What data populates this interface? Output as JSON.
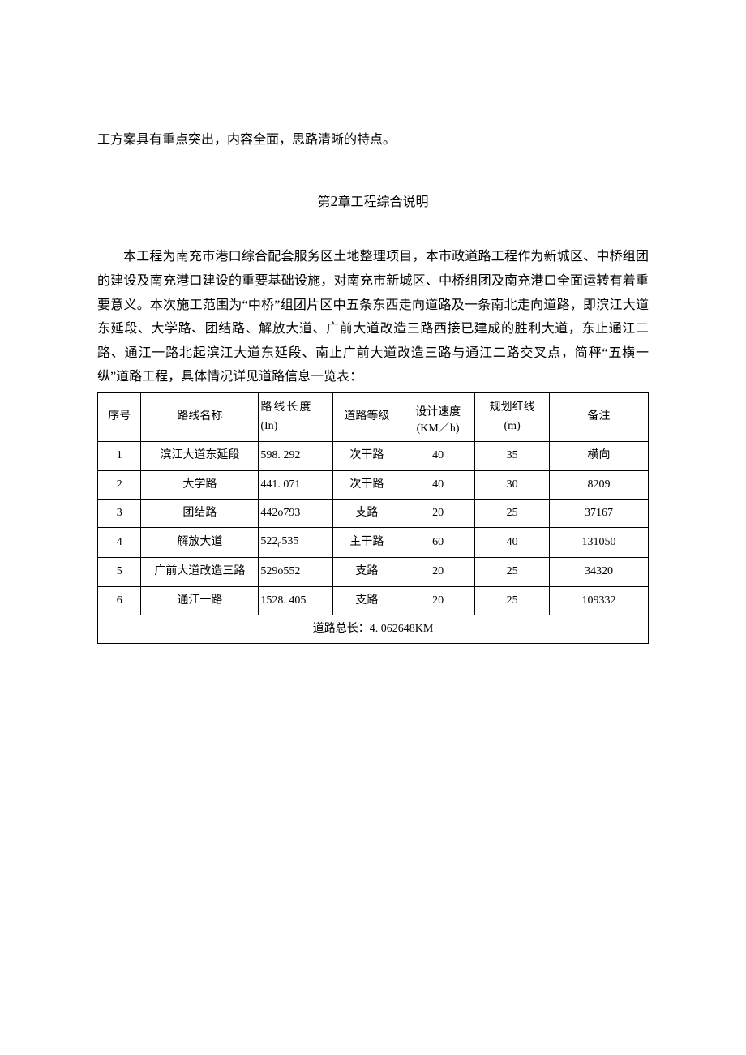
{
  "page": {
    "bg": "#ffffff",
    "text_color": "#000000",
    "font_family": "SimSun",
    "base_fontsize": 16
  },
  "intro": "工方案具有重点突出，内容全面，思路清晰的特点。",
  "chapter": {
    "prefix": "第",
    "number": "2",
    "suffix": "章工程综合说明"
  },
  "paragraph": "本工程为南充市港口综合配套服务区土地整理项目，本市政道路工程作为新城区、中桥组团的建设及南充港口建设的重要基础设施，对南充市新城区、中桥组团及南充港口全面运转有着重要意义。本次施工范围为“中桥”组团片区中五条东西走向道路及一条南北走向道路，即滨江大道东延段、大学路、团结路、解放大道、广前大道改造三路西接已建成的胜利大道，东止通江二路、通江一路北起滨江大道东延段、南止广前大道改造三路与通江二路交叉点，简秤“五横一纵”道路工程，具体情况详见道路信息一览表：",
  "table": {
    "border_color": "#000000",
    "header_fontsize": 14,
    "cell_fontsize": 14,
    "columns": {
      "seq": {
        "label": "序号",
        "width_pct": 7
      },
      "name": {
        "label": "路线名称",
        "width_pct": 19
      },
      "len": {
        "label_l1": "路线长度",
        "label_l2": "(In)",
        "width_pct": 12
      },
      "grade": {
        "label": "道路等级",
        "width_pct": 11
      },
      "speed": {
        "label_l1": "设计速度",
        "label_l2": "(KM／h)",
        "width_pct": 12
      },
      "red": {
        "label_l1": "规划红线",
        "label_l2": "(m)",
        "width_pct": 12
      },
      "note": {
        "label": "备注",
        "width_pct": 16
      }
    },
    "rows": [
      {
        "seq": "1",
        "name": "滨江大道东延段",
        "len": "598. 292",
        "grade": "次干路",
        "speed": "40",
        "red": "35",
        "note": "横向"
      },
      {
        "seq": "2",
        "name": "大学路",
        "len": "441. 071",
        "grade": "次干路",
        "speed": "40",
        "red": "30",
        "note": "8209"
      },
      {
        "seq": "3",
        "name": "团结路",
        "len": "442o793",
        "grade": "支路",
        "speed": "20",
        "red": "25",
        "note": "37167"
      },
      {
        "seq": "4",
        "name": "解放大道",
        "len_pre": "522",
        "len_sub": "0",
        "len_post": "535",
        "grade": "主干路",
        "speed": "60",
        "red": "40",
        "note": "131050"
      },
      {
        "seq": "5",
        "name": "广前大道改造三路",
        "len": "529o552",
        "grade": "支路",
        "speed": "20",
        "red": "25",
        "note": "34320"
      },
      {
        "seq": "6",
        "name": "通江一路",
        "len": "1528. 405",
        "grade": "支路",
        "speed": "20",
        "red": "25",
        "note": "109332"
      }
    ],
    "footer": "道路总长：4. 062648KM"
  }
}
